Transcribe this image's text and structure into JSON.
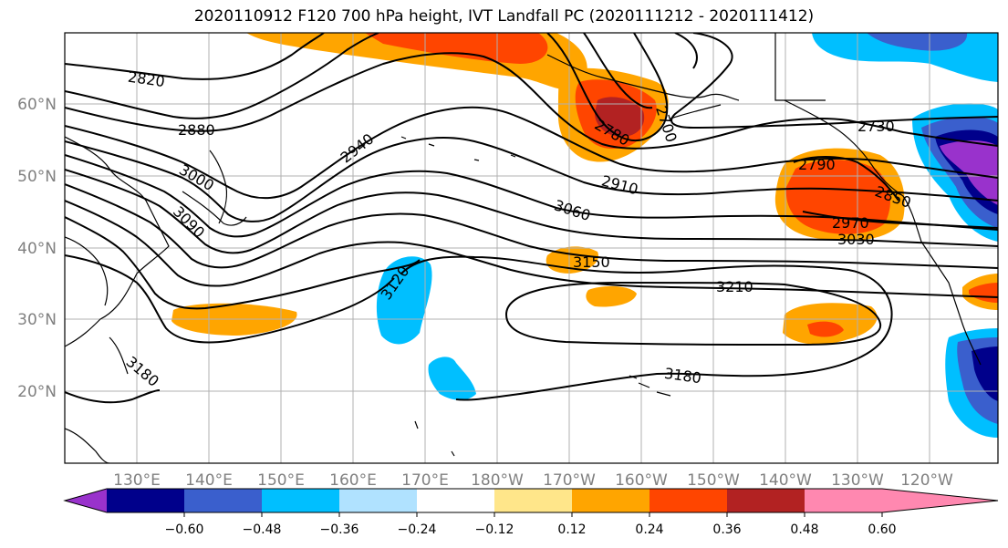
{
  "title": "2020110912 F120 700 hPa height, IVT Landfall PC (2020111212 - 2020111412)",
  "latitude_labels": [
    "60°N",
    "50°N",
    "40°N",
    "30°N",
    "20°N"
  ],
  "longitude_labels": [
    "130°E",
    "140°E",
    "150°E",
    "160°E",
    "170°E",
    "180°W",
    "170°W",
    "160°W",
    "150°W",
    "140°W",
    "130°W",
    "120°W"
  ],
  "contour_labels": [
    "2820",
    "2880",
    "2940",
    "3000",
    "3090",
    "3120",
    "2730",
    "2790",
    "2780",
    "2910",
    "3060",
    "3150",
    "2850",
    "2970",
    "3030",
    "3210",
    "3180",
    "3180",
    "2700"
  ],
  "colorbar": {
    "colors": [
      "#9932cc",
      "#00008b",
      "#3a5fcd",
      "#00bfff",
      "#b0e2ff",
      "#ffffff",
      "#ffe68a",
      "#ffa500",
      "#ff4500",
      "#b22222",
      "#ff88b0"
    ],
    "tick_labels": [
      "−0.60",
      "−0.48",
      "−0.36",
      "−0.24",
      "−0.12",
      "0.12",
      "0.24",
      "0.36",
      "0.48",
      "0.60"
    ]
  }
}
